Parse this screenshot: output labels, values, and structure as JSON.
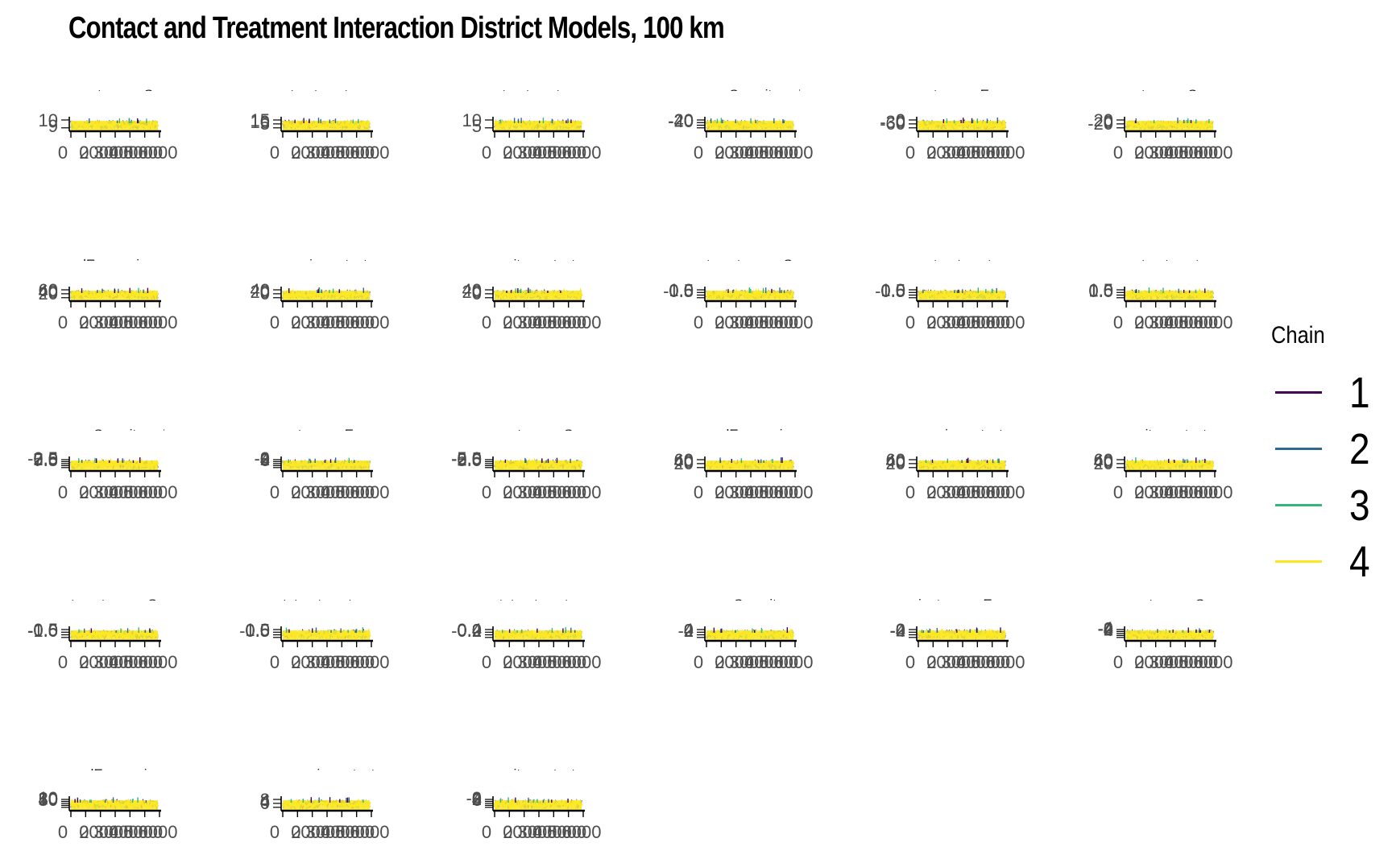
{
  "chart_data": {
    "type": "line",
    "title": "Contact and Treatment Interaction District Models, 100 km",
    "xlabel": "",
    "ylabel": "",
    "x_tick_labels": [
      "0",
      "0",
      "2000",
      "3000",
      "4000",
      "5000",
      "6000"
    ],
    "legend": {
      "title": "Chain",
      "position": "right",
      "entries": [
        {
          "label": "1",
          "color": "#440154"
        },
        {
          "label": "2",
          "color": "#31688e"
        },
        {
          "label": "3",
          "color": "#35b779"
        },
        {
          "label": "4",
          "color": "#fde725"
        }
      ]
    },
    "grid": false,
    "panels": [
      {
        "strip": "ment_groupSecu",
        "yticks": [
          "10",
          "9"
        ]
      },
      {
        "strip": "_treatment_grou",
        "yticks": [
          "15",
          "10",
          "5"
        ]
      },
      {
        "strip": "_treatment_gro",
        "yticks": [
          "10",
          "5"
        ]
      },
      {
        "strip": "oupSecurityandE",
        "yticks": [
          "20",
          "0",
          "-20",
          "-40"
        ]
      },
      {
        "strip": "ent_groupEconom",
        "yticks": [
          "0",
          "-30",
          "-60"
        ]
      },
      {
        "strip": "ent_groupSecuri",
        "yticks": [
          "20",
          "0",
          "-20"
        ]
      },
      {
        "strip": "ndEconomic:con",
        "yticks": [
          "60",
          "40",
          "20"
        ]
      },
      {
        "strip": "nomic:contact_p",
        "yticks": [
          "40",
          "20",
          "0"
        ]
      },
      {
        "strip": "curity:contact_p",
        "yticks": [
          "40",
          "20",
          "0"
        ]
      },
      {
        "strip": "tment_groupSec",
        "yticks": [
          "1.0",
          "0.5",
          "0.0",
          "-0.5"
        ]
      },
      {
        "strip": "e_treatment_gro",
        "yticks": [
          "1.0",
          "0.5",
          "0.0",
          "-0.5"
        ]
      },
      {
        "strip": "e_treatment_gro",
        "yticks": [
          "1.5",
          "1.0",
          "0.5",
          "0.0"
        ]
      },
      {
        "strip": "oupSecurityand",
        "yticks": [
          "7.5",
          "5.0",
          "2.5",
          "0.0",
          "-2.5"
        ]
      },
      {
        "strip": "ent_groupEcono",
        "yticks": [
          "6",
          "4",
          "2",
          "0",
          "-2"
        ]
      },
      {
        "strip": "nent_groupSecur",
        "yticks": [
          "5.0",
          "2.5",
          "0.0",
          "-2.5",
          "-5.0"
        ]
      },
      {
        "strip": "andEconomic:co",
        "yticks": [
          "60",
          "40",
          "20"
        ]
      },
      {
        "strip": "nomic:contact_",
        "yticks": [
          "60",
          "40",
          "20"
        ]
      },
      {
        "strip": "curity:contact_p",
        "yticks": [
          "60",
          "40",
          "20"
        ]
      },
      {
        "strip": "tment_groupSec",
        "yticks": [
          "0.5",
          "0.0",
          "-0.5",
          "-1.0"
        ]
      },
      {
        "strip": "t_treatment_gro",
        "yticks": [
          "1.0",
          "0.5",
          "0.0",
          "-0.5"
        ]
      },
      {
        "strip": "rt_treatment_gr",
        "yticks": [
          "0.4",
          "0.2",
          "0.0",
          "-0.2"
        ]
      },
      {
        "strip": "roupSecurityand",
        "yticks": [
          "4",
          "2",
          "0",
          "-2"
        ]
      },
      {
        "strip": "ient_groupEcono",
        "yticks": [
          "2",
          "0",
          "-2",
          "-4"
        ]
      },
      {
        "strip": "nent_groupSecu",
        "yticks": [
          "4",
          "2",
          "0",
          "-2",
          "-4"
        ]
      },
      {
        "strip": "andEconomic:co",
        "yticks": [
          "50",
          "40",
          "30",
          "20",
          "10"
        ]
      },
      {
        "strip": "onomic:contact_",
        "yticks": [
          "8",
          "4",
          "0"
        ]
      },
      {
        "strip": "curity:contact_",
        "yticks": [
          "6",
          "4",
          "2",
          "0",
          "-2"
        ]
      }
    ]
  }
}
